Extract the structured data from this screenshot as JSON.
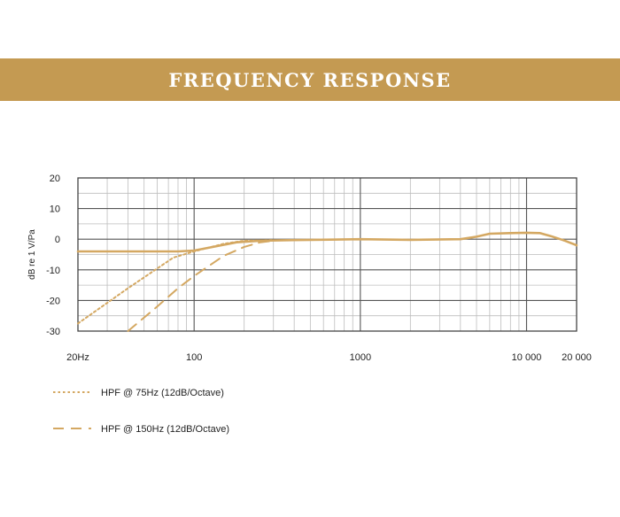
{
  "header": {
    "title": "FREQUENCY RESPONSE"
  },
  "colors": {
    "banner": "#c49a52",
    "curve": "#d4a862",
    "grid_major": "#555555",
    "grid_minor": "#bdbdbd"
  },
  "chart_data": {
    "type": "line",
    "title": "",
    "xlabel": "",
    "ylabel": "dB re 1 V/Pa",
    "x_scale": "log",
    "xlim": [
      20,
      20000
    ],
    "ylim": [
      -30,
      20
    ],
    "yticks": [
      20,
      10,
      0,
      -10,
      -20,
      -30
    ],
    "ytick_labels": [
      "20",
      "10",
      "0",
      "-10",
      "-20",
      "-30"
    ],
    "xticks": [
      20,
      100,
      1000,
      10000,
      20000
    ],
    "xtick_labels": [
      "20Hz",
      "100",
      "1000",
      "10 000",
      "20 000"
    ],
    "grid": true,
    "legend_position": "bottom-left",
    "series": [
      {
        "name": "",
        "style": "solid",
        "x": [
          20,
          50,
          80,
          100,
          130,
          180,
          250,
          400,
          1000,
          2000,
          4000,
          5000,
          6000,
          8000,
          10000,
          12000,
          14000,
          17000,
          20000
        ],
        "y": [
          -4,
          -4,
          -4,
          -3.7,
          -2.5,
          -1,
          -0.5,
          -0.3,
          0,
          -0.2,
          0,
          0.8,
          1.8,
          2,
          2.1,
          2,
          1,
          -0.5,
          -2
        ]
      },
      {
        "name": "HPF @ 75Hz (12dB/Octave)",
        "style": "dotted",
        "x": [
          20,
          40,
          75,
          100,
          150,
          200,
          300
        ],
        "y": [
          -27.5,
          -16,
          -6,
          -4,
          -1.5,
          -0.5,
          -0.3
        ]
      },
      {
        "name": "HPF @ 150Hz (12dB/Octave)",
        "style": "dashed",
        "x": [
          40,
          60,
          80,
          100,
          150,
          200,
          250,
          300
        ],
        "y": [
          -30,
          -22,
          -16,
          -12,
          -5.5,
          -2.5,
          -1,
          -0.5
        ]
      }
    ]
  }
}
